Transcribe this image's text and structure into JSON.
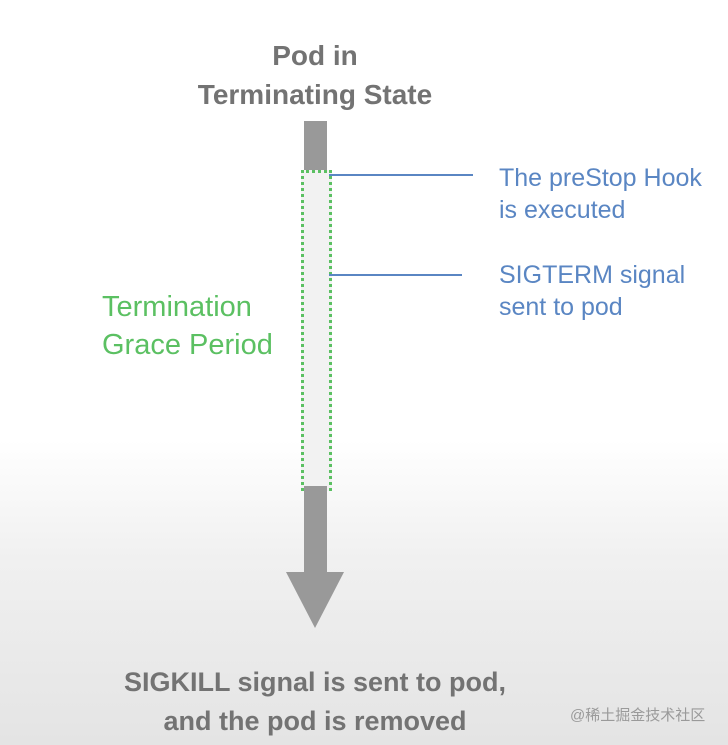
{
  "title": {
    "line1": "Pod in",
    "line2": "Terminating State"
  },
  "grace_period_label": {
    "line1": "Termination",
    "line2": "Grace Period"
  },
  "events": [
    {
      "line1": "The preStop Hook",
      "line2": "is executed"
    },
    {
      "line1": "SIGTERM signal",
      "line2": "sent to pod"
    }
  ],
  "outcome": {
    "line1": "SIGKILL signal is sent to pod,",
    "line2": "and the pod is removed"
  },
  "watermark": "@稀土掘金技术社区",
  "colors": {
    "arrow": "#999999",
    "grace_period": "#5bc062",
    "events": "#5a86c3",
    "text": "#737373"
  }
}
